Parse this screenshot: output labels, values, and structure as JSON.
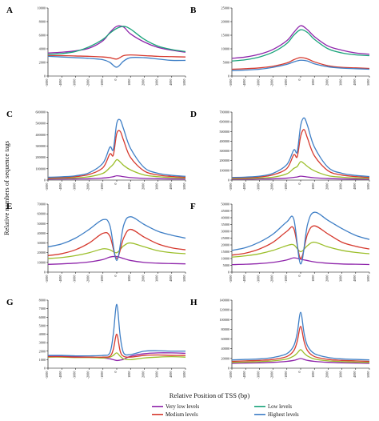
{
  "figure": {
    "ylabel": "Relative numbers of sequence tags",
    "xlabel": "Relative Position of TSS (bp)"
  },
  "legend": {
    "entries": [
      {
        "name": "Very low levels",
        "color": "#8e24aa"
      },
      {
        "name": "Low levels",
        "color": "#1aa37a"
      },
      {
        "name": "Medium levels",
        "color": "#d63a2f"
      },
      {
        "name": "Highest levels",
        "color": "#3f7fc6"
      }
    ],
    "placement": "bottom"
  },
  "chart_data": [
    {
      "panel": "A",
      "type": "line",
      "xlim": [
        -5000,
        5000
      ],
      "ylim": [
        0,
        10000
      ],
      "yticks": [
        0,
        2000,
        4000,
        6000,
        8000,
        10000
      ],
      "xticks": [
        -5000,
        -4000,
        -3000,
        -2000,
        -1000,
        0,
        1000,
        2000,
        3000,
        4000,
        5000
      ],
      "x": [
        -5000,
        -4000,
        -3000,
        -2000,
        -1000,
        -500,
        0,
        500,
        1000,
        2000,
        3000,
        4000,
        5000
      ],
      "series": [
        {
          "name": "Very low levels",
          "color": "#8e24aa",
          "values": [
            3400,
            3500,
            3700,
            4100,
            5200,
            6400,
            7300,
            7200,
            6200,
            5000,
            4200,
            3800,
            3500
          ]
        },
        {
          "name": "Low levels",
          "color": "#1aa37a",
          "values": [
            3200,
            3300,
            3600,
            4300,
            5400,
            6300,
            7000,
            7300,
            6900,
            5400,
            4400,
            3900,
            3600
          ]
        },
        {
          "name": "Medium levels",
          "color": "#d63a2f",
          "values": [
            3000,
            3000,
            2950,
            2900,
            2800,
            2700,
            2500,
            3000,
            3100,
            3000,
            2900,
            2850,
            2800
          ]
        },
        {
          "name": "Highest levels",
          "color": "#3f7fc6",
          "values": [
            2900,
            2800,
            2700,
            2600,
            2400,
            2000,
            1300,
            2200,
            2700,
            2700,
            2500,
            2300,
            2300
          ]
        }
      ]
    },
    {
      "panel": "B",
      "type": "line",
      "xlim": [
        -5000,
        5000
      ],
      "ylim": [
        0,
        25000
      ],
      "yticks": [
        0,
        5000,
        10000,
        15000,
        20000,
        25000
      ],
      "xticks": [
        -5000,
        -4000,
        -3000,
        -2000,
        -1000,
        0,
        1000,
        2000,
        3000,
        4000,
        5000
      ],
      "x": [
        -5000,
        -4000,
        -3000,
        -2000,
        -1000,
        -500,
        0,
        500,
        1000,
        2000,
        3000,
        4000,
        5000
      ],
      "series": [
        {
          "name": "Very low levels",
          "color": "#8e24aa",
          "values": [
            6500,
            7000,
            8000,
            9800,
            13000,
            16000,
            18500,
            17000,
            14500,
            11000,
            9500,
            8500,
            8000
          ]
        },
        {
          "name": "Low levels",
          "color": "#1aa37a",
          "values": [
            5500,
            6000,
            7000,
            8800,
            12000,
            15000,
            17000,
            16000,
            13500,
            10000,
            8500,
            7800,
            7500
          ]
        },
        {
          "name": "Medium levels",
          "color": "#d63a2f",
          "values": [
            2500,
            2700,
            3000,
            3600,
            4800,
            6000,
            6800,
            6300,
            5200,
            3800,
            3200,
            3000,
            2800
          ]
        },
        {
          "name": "Highest levels",
          "color": "#3f7fc6",
          "values": [
            2000,
            2200,
            2500,
            3200,
            4300,
            5200,
            5800,
            5500,
            4500,
            3400,
            2900,
            2700,
            2500
          ]
        }
      ]
    },
    {
      "panel": "C",
      "type": "line",
      "xlim": [
        -5000,
        5000
      ],
      "ylim": [
        0,
        600000
      ],
      "yticks": [
        0,
        100000,
        200000,
        300000,
        400000,
        500000,
        600000
      ],
      "xticks": [
        -5000,
        -4000,
        -3000,
        -2000,
        -1000,
        0,
        1000,
        2000,
        3000,
        4000,
        5000
      ],
      "x": [
        -5000,
        -4000,
        -3000,
        -2000,
        -1000,
        -500,
        -250,
        0,
        250,
        500,
        1000,
        2000,
        3000,
        4000,
        5000
      ],
      "series": [
        {
          "name": "Very low levels",
          "color": "#8e24aa",
          "values": [
            8000,
            9000,
            10000,
            12000,
            18000,
            25000,
            30000,
            38000,
            35000,
            30000,
            22000,
            15000,
            12000,
            10000,
            9000
          ]
        },
        {
          "name": "Low levels",
          "color": "#9cbf2b",
          "values": [
            15000,
            17000,
            20000,
            30000,
            60000,
            110000,
            140000,
            180000,
            160000,
            130000,
            90000,
            45000,
            30000,
            22000,
            18000
          ]
        },
        {
          "name": "Medium levels",
          "color": "#d63a2f",
          "values": [
            20000,
            23000,
            30000,
            50000,
            110000,
            230000,
            220000,
            410000,
            430000,
            350000,
            200000,
            80000,
            45000,
            32000,
            25000
          ]
        },
        {
          "name": "Highest levels",
          "color": "#3f7fc6",
          "values": [
            25000,
            29000,
            38000,
            65000,
            150000,
            290000,
            270000,
            500000,
            530000,
            450000,
            280000,
            110000,
            60000,
            42000,
            33000
          ]
        }
      ]
    },
    {
      "panel": "D",
      "type": "line",
      "xlim": [
        -5000,
        5000
      ],
      "ylim": [
        0,
        700000
      ],
      "yticks": [
        0,
        100000,
        200000,
        300000,
        400000,
        500000,
        600000,
        700000
      ],
      "xticks": [
        -5000,
        -4000,
        -3000,
        -2000,
        -1000,
        0,
        1000,
        2000,
        3000,
        4000,
        5000
      ],
      "x": [
        -5000,
        -4000,
        -3000,
        -2000,
        -1000,
        -500,
        -250,
        0,
        250,
        500,
        1000,
        2000,
        3000,
        4000,
        5000
      ],
      "series": [
        {
          "name": "Very low levels",
          "color": "#8e24aa",
          "values": [
            8000,
            9000,
            11000,
            13000,
            20000,
            28000,
            32000,
            40000,
            37000,
            32000,
            24000,
            16000,
            12000,
            10000,
            9000
          ]
        },
        {
          "name": "Low levels",
          "color": "#9cbf2b",
          "values": [
            15000,
            17000,
            21000,
            30000,
            65000,
            120000,
            140000,
            190000,
            170000,
            140000,
            95000,
            45000,
            30000,
            22000,
            18000
          ]
        },
        {
          "name": "Medium levels",
          "color": "#d63a2f",
          "values": [
            22000,
            25000,
            32000,
            55000,
            120000,
            260000,
            240000,
            450000,
            520000,
            430000,
            250000,
            95000,
            52000,
            36000,
            28000
          ]
        },
        {
          "name": "Highest levels",
          "color": "#3f7fc6",
          "values": [
            27000,
            31000,
            40000,
            70000,
            160000,
            310000,
            290000,
            560000,
            640000,
            560000,
            340000,
            130000,
            70000,
            48000,
            37000
          ]
        }
      ]
    },
    {
      "panel": "E",
      "type": "line",
      "xlim": [
        -5000,
        5000
      ],
      "ylim": [
        0,
        70000
      ],
      "yticks": [
        0,
        10000,
        20000,
        30000,
        40000,
        50000,
        60000,
        70000
      ],
      "xticks": [
        -5000,
        -4000,
        -3000,
        -2000,
        -1000,
        0,
        1000,
        2000,
        3000,
        4000,
        5000
      ],
      "x": [
        -5000,
        -4000,
        -3000,
        -2000,
        -1000,
        -500,
        0,
        500,
        1000,
        2000,
        3000,
        4000,
        5000
      ],
      "series": [
        {
          "name": "Very low levels",
          "color": "#8e24aa",
          "values": [
            8000,
            8500,
            9200,
            10500,
            13000,
            15500,
            16000,
            14000,
            12000,
            10000,
            9200,
            8800,
            8500
          ]
        },
        {
          "name": "Low levels",
          "color": "#9cbf2b",
          "values": [
            14000,
            15000,
            17000,
            20000,
            24000,
            23000,
            20000,
            27000,
            30000,
            26000,
            22000,
            20000,
            19000
          ]
        },
        {
          "name": "Medium levels",
          "color": "#d63a2f",
          "values": [
            17000,
            19000,
            23000,
            30000,
            40000,
            37000,
            14000,
            35000,
            44000,
            36000,
            29000,
            25000,
            23000
          ]
        },
        {
          "name": "Highest levels",
          "color": "#3f7fc6",
          "values": [
            26000,
            29000,
            35000,
            44000,
            54000,
            48000,
            12000,
            48000,
            57000,
            49000,
            42000,
            38000,
            35000
          ]
        }
      ]
    },
    {
      "panel": "F",
      "type": "line",
      "xlim": [
        -5000,
        5000
      ],
      "ylim": [
        0,
        50000
      ],
      "yticks": [
        0,
        5000,
        10000,
        15000,
        20000,
        25000,
        30000,
        35000,
        40000,
        45000,
        50000
      ],
      "xticks": [
        -5000,
        -4000,
        -3000,
        -2000,
        -1000,
        0,
        1000,
        2000,
        3000,
        4000,
        5000
      ],
      "x": [
        -5000,
        -4000,
        -3000,
        -2000,
        -1000,
        -500,
        0,
        500,
        1000,
        2000,
        3000,
        4000,
        5000
      ],
      "series": [
        {
          "name": "Very low levels",
          "color": "#8e24aa",
          "values": [
            5500,
            5800,
            6300,
            7200,
            9000,
            10500,
            9500,
            8500,
            7500,
            6500,
            6000,
            5800,
            5600
          ]
        },
        {
          "name": "Low levels",
          "color": "#9cbf2b",
          "values": [
            11000,
            12000,
            13500,
            16000,
            19500,
            20000,
            15000,
            19500,
            22000,
            18500,
            16000,
            14500,
            13500
          ]
        },
        {
          "name": "Medium levels",
          "color": "#d63a2f",
          "values": [
            12500,
            14000,
            17000,
            22000,
            30000,
            32000,
            10000,
            28000,
            34000,
            28000,
            22000,
            19000,
            17000
          ]
        },
        {
          "name": "Highest levels",
          "color": "#3f7fc6",
          "values": [
            16000,
            18000,
            22000,
            28000,
            37000,
            39000,
            6000,
            35000,
            44000,
            38000,
            32000,
            27000,
            24000
          ]
        }
      ]
    },
    {
      "panel": "G",
      "type": "line",
      "xlim": [
        -5000,
        5000
      ],
      "ylim": [
        0,
        8000
      ],
      "yticks": [
        0,
        1000,
        2000,
        3000,
        4000,
        5000,
        6000,
        7000,
        8000
      ],
      "xticks": [
        -5000,
        -4000,
        -3000,
        -2000,
        -1000,
        0,
        1000,
        2000,
        3000,
        4000,
        5000
      ],
      "x": [
        -5000,
        -4000,
        -3000,
        -2000,
        -1000,
        -500,
        -250,
        0,
        250,
        500,
        1000,
        2000,
        3000,
        4000,
        5000
      ],
      "series": [
        {
          "name": "Very low levels",
          "color": "#8e24aa",
          "values": [
            1400,
            1400,
            1350,
            1300,
            1200,
            1100,
            1000,
            900,
            950,
            1050,
            1400,
            1700,
            1800,
            1800,
            1750
          ]
        },
        {
          "name": "Low levels",
          "color": "#9cbf2b",
          "values": [
            1300,
            1300,
            1250,
            1250,
            1200,
            1300,
            1500,
            1800,
            1400,
            1100,
            1000,
            1200,
            1300,
            1350,
            1300
          ]
        },
        {
          "name": "Medium levels",
          "color": "#d63a2f",
          "values": [
            1350,
            1350,
            1300,
            1300,
            1300,
            1400,
            2200,
            4000,
            2000,
            1400,
            1300,
            1500,
            1550,
            1500,
            1500
          ]
        },
        {
          "name": "Highest levels",
          "color": "#3f7fc6",
          "values": [
            1500,
            1500,
            1450,
            1450,
            1500,
            1800,
            4000,
            7500,
            3800,
            1800,
            1600,
            2000,
            2050,
            2000,
            2000
          ]
        }
      ]
    },
    {
      "panel": "H",
      "type": "line",
      "xlim": [
        -5000,
        5000
      ],
      "ylim": [
        0,
        140000
      ],
      "yticks": [
        0,
        20000,
        40000,
        60000,
        80000,
        100000,
        120000,
        140000
      ],
      "xticks": [
        -5000,
        -4000,
        -3000,
        -2000,
        -1000,
        0,
        1000,
        2000,
        3000,
        4000,
        5000
      ],
      "x": [
        -5000,
        -4000,
        -3000,
        -2000,
        -1000,
        -500,
        -250,
        0,
        250,
        500,
        1000,
        2000,
        3000,
        4000,
        5000
      ],
      "series": [
        {
          "name": "Very low levels",
          "color": "#8e24aa",
          "values": [
            10000,
            10500,
            11000,
            12000,
            14000,
            16000,
            18000,
            20000,
            18000,
            16000,
            14000,
            12000,
            11000,
            10500,
            10000
          ]
        },
        {
          "name": "Low levels",
          "color": "#9cbf2b",
          "values": [
            12000,
            12500,
            13500,
            15000,
            19000,
            25000,
            31000,
            38000,
            31000,
            25000,
            19000,
            15000,
            13500,
            12500,
            12000
          ]
        },
        {
          "name": "Medium levels",
          "color": "#d63a2f",
          "values": [
            14000,
            15000,
            16000,
            18000,
            24000,
            36000,
            55000,
            86000,
            55000,
            36000,
            24000,
            18000,
            16000,
            15000,
            14000
          ]
        },
        {
          "name": "Highest levels",
          "color": "#3f7fc6",
          "values": [
            17000,
            18000,
            19000,
            22000,
            30000,
            46000,
            72000,
            115000,
            72000,
            46000,
            30000,
            22000,
            19000,
            18000,
            17000
          ]
        }
      ]
    }
  ]
}
